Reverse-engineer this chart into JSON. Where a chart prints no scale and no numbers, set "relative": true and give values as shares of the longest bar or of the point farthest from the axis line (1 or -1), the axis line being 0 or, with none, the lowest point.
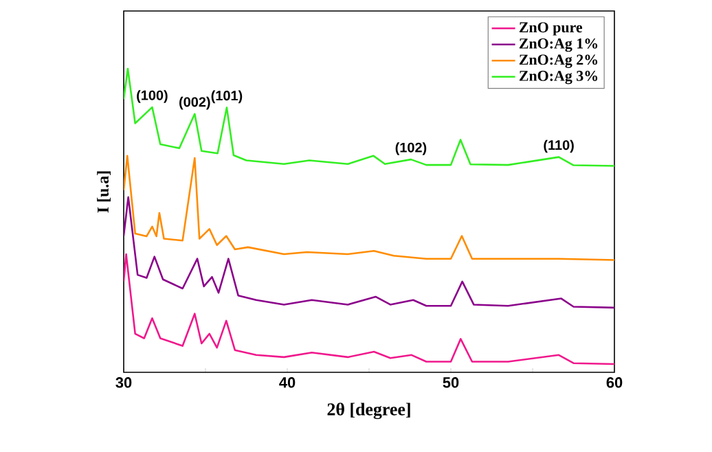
{
  "chart_data": {
    "type": "line",
    "relative": true,
    "xlabel": "2θ [degree]",
    "ylabel": "I [u.a]",
    "xlim": [
      30,
      60
    ],
    "xticks": [
      30,
      {
        "value": 35,
        "label": null
      },
      40,
      {
        "value": 45,
        "label": null
      },
      50,
      {
        "value": 55,
        "label": null
      },
      60
    ],
    "legend": "top right",
    "grid": false,
    "marker": "none",
    "line_style": "solid",
    "annotations": [
      {
        "text": "(100)",
        "x": 31.74,
        "y": 0.873
      },
      {
        "text": "(002)",
        "x": 34.34,
        "y": 0.851
      },
      {
        "text": "(101)",
        "x": 36.3,
        "y": 0.872
      },
      {
        "text": "(102)",
        "x": 47.56,
        "y": 0.701
      },
      {
        "text": "(110)",
        "x": 56.6,
        "y": 0.709
      }
    ],
    "series": [
      {
        "name": "ZnO pure",
        "color": "#f0188c",
        "x": [
          30.0,
          30.15,
          30.7,
          31.25,
          31.74,
          32.24,
          33.6,
          34.34,
          34.76,
          35.24,
          35.7,
          36.27,
          36.8,
          38.1,
          39.8,
          41.5,
          43.7,
          45.3,
          46.3,
          47.6,
          48.5,
          50.0,
          50.6,
          51.3,
          53.5,
          56.6,
          57.5,
          60.0
        ],
        "values": [
          0.3,
          0.389,
          0.127,
          0.112,
          0.178,
          0.112,
          0.087,
          0.193,
          0.095,
          0.127,
          0.081,
          0.17,
          0.073,
          0.057,
          0.05,
          0.065,
          0.05,
          0.068,
          0.047,
          0.057,
          0.035,
          0.035,
          0.11,
          0.035,
          0.035,
          0.057,
          0.03,
          0.027
        ]
      },
      {
        "name": "ZnO:Ag 1%",
        "color": "#8b008b",
        "x": [
          30.0,
          30.28,
          30.85,
          31.4,
          31.88,
          32.4,
          33.6,
          34.5,
          34.9,
          35.4,
          35.8,
          36.4,
          37.0,
          38.1,
          39.8,
          41.5,
          43.7,
          45.4,
          46.3,
          47.7,
          48.5,
          50.0,
          50.7,
          51.4,
          53.5,
          56.75,
          57.5,
          60.0
        ],
        "values": [
          0.45,
          0.577,
          0.321,
          0.311,
          0.381,
          0.306,
          0.276,
          0.374,
          0.283,
          0.314,
          0.262,
          0.374,
          0.253,
          0.238,
          0.223,
          0.238,
          0.223,
          0.249,
          0.223,
          0.238,
          0.219,
          0.219,
          0.299,
          0.223,
          0.219,
          0.243,
          0.216,
          0.213
        ]
      },
      {
        "name": "ZnO:Ag 2%",
        "color": "#ff8c00",
        "x": [
          30.0,
          30.22,
          30.7,
          31.4,
          31.74,
          32.0,
          32.18,
          32.46,
          33.6,
          34.34,
          34.63,
          35.24,
          35.7,
          36.27,
          36.8,
          37.6,
          39.8,
          41.2,
          43.7,
          45.3,
          46.5,
          48.5,
          50.0,
          50.67,
          51.3,
          53.5,
          56.6,
          60.0
        ],
        "values": [
          0.6,
          0.713,
          0.457,
          0.448,
          0.48,
          0.448,
          0.525,
          0.44,
          0.434,
          0.706,
          0.44,
          0.472,
          0.419,
          0.449,
          0.405,
          0.412,
          0.389,
          0.396,
          0.389,
          0.4,
          0.384,
          0.374,
          0.374,
          0.449,
          0.374,
          0.374,
          0.374,
          0.37
        ]
      },
      {
        "name": "ZnO:Ag 3%",
        "color": "#33ee22",
        "x": [
          30.0,
          30.25,
          30.7,
          31.74,
          32.24,
          33.4,
          34.34,
          34.76,
          35.74,
          36.3,
          36.72,
          37.5,
          39.8,
          41.35,
          43.7,
          45.27,
          45.97,
          47.56,
          48.5,
          50.0,
          50.59,
          51.2,
          53.5,
          56.6,
          57.5,
          60.0
        ],
        "values": [
          0.9,
          1.0,
          0.82,
          0.873,
          0.751,
          0.738,
          0.851,
          0.729,
          0.721,
          0.872,
          0.715,
          0.698,
          0.686,
          0.698,
          0.686,
          0.713,
          0.686,
          0.701,
          0.683,
          0.683,
          0.766,
          0.685,
          0.683,
          0.709,
          0.682,
          0.68
        ]
      }
    ]
  }
}
